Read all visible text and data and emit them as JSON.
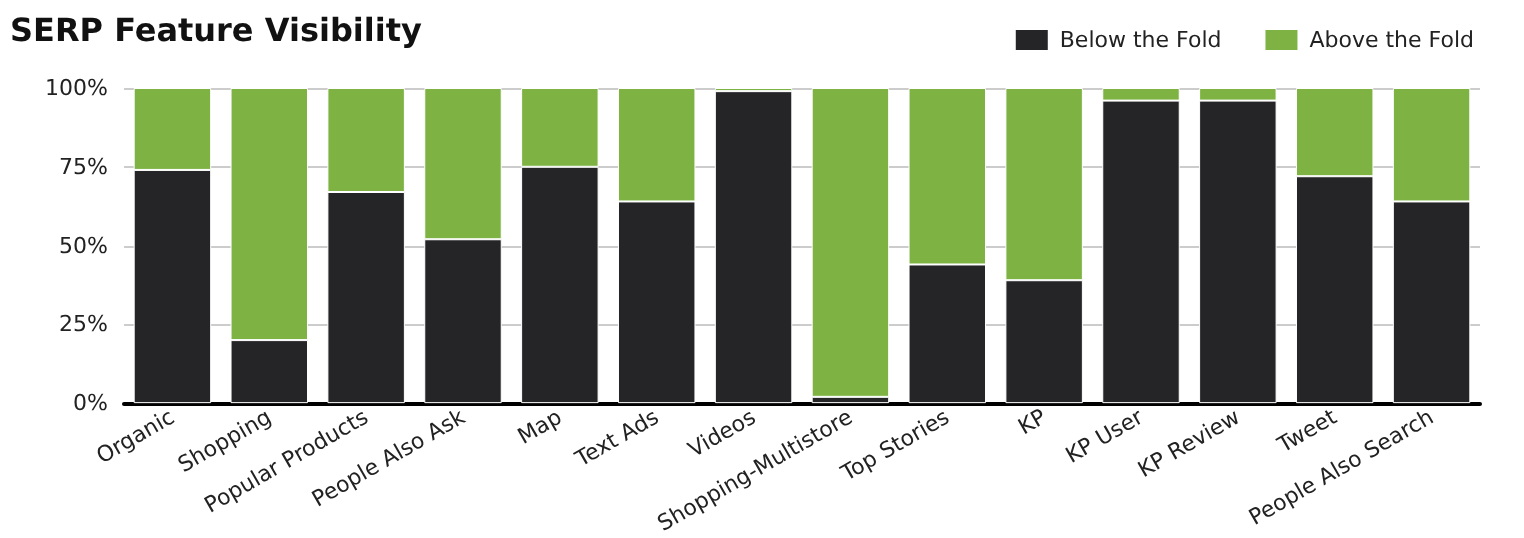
{
  "chart_data": {
    "type": "bar",
    "title": "SERP Feature Visibility",
    "stacked": true,
    "categories": [
      "Organic",
      "Shopping",
      "Popular Products",
      "People Also Ask",
      "Map",
      "Text Ads",
      "Videos",
      "Shopping-Multistore",
      "Top Stories",
      "KP",
      "KP User",
      "KP Review",
      "Tweet",
      "People Also Search"
    ],
    "series": [
      {
        "name": "Below the Fold",
        "color": "#252527",
        "values": [
          74,
          20,
          67,
          52,
          75,
          64,
          99,
          2,
          44,
          39,
          96,
          96,
          72,
          64
        ]
      },
      {
        "name": "Above the Fold",
        "color": "#7eb344",
        "values": [
          26,
          80,
          33,
          48,
          25,
          36,
          1,
          98,
          56,
          61,
          4,
          4,
          28,
          36
        ]
      }
    ],
    "ylim": [
      0,
      100
    ],
    "yticks": [
      {
        "value": 0,
        "label": "0%"
      },
      {
        "value": 25,
        "label": "25%"
      },
      {
        "value": 50,
        "label": "50%"
      },
      {
        "value": 75,
        "label": "75%"
      },
      {
        "value": 100,
        "label": "100%"
      }
    ],
    "grid": "y",
    "legend": "top right"
  }
}
